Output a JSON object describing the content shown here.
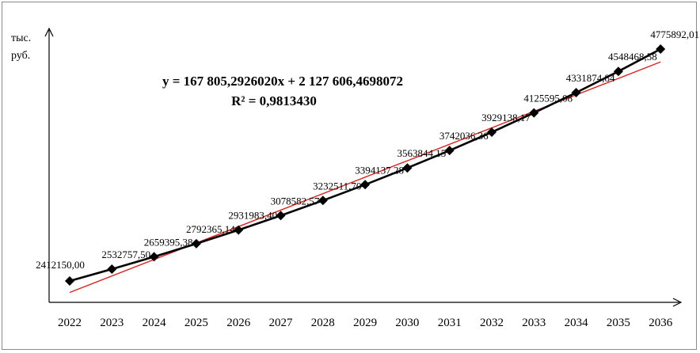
{
  "chart_data": {
    "type": "line",
    "title": "",
    "xlabel": "",
    "ylabel": "тыс.\nруб.",
    "ylabel_lines": [
      "тыс.",
      "руб."
    ],
    "x": [
      "2022",
      "2023",
      "2024",
      "2025",
      "2026",
      "2027",
      "2028",
      "2029",
      "2030",
      "2031",
      "2032",
      "2033",
      "2034",
      "2035",
      "2036"
    ],
    "series": [
      {
        "values": [
          2412150.0,
          2532757.5,
          2659395.38,
          2792365.14,
          2931983.4,
          3078582.57,
          3232511.7,
          3394137.28,
          3563844.15,
          3742036.36,
          3929138.17,
          4125595.08,
          4331874.84,
          4548468.58,
          4775892.01
        ],
        "labels": [
          "2412150,00",
          "2532757,50",
          "2659395,38",
          "2792365,14",
          "2931983,40",
          "3078582,57",
          "3232511,70",
          "3394137,28",
          "3563844,15",
          "3742036,36",
          "3929138,17",
          "4125595,08",
          "4331874,84",
          "4548468,58",
          "4775892,01"
        ],
        "color": "#000000",
        "marker": "diamond"
      }
    ],
    "trendline": {
      "type": "linear",
      "slope": 167805.292602,
      "intercept": 2127606.4698072,
      "r2": 0.981343,
      "color": "#e0201b",
      "equation_text": "y = 167 805,2926020x + 2 127 606,4698072",
      "r2_text": "R² = 0,9813430"
    },
    "ylim": [
      2100000,
      4950000
    ],
    "grid": false,
    "legend": "none"
  }
}
